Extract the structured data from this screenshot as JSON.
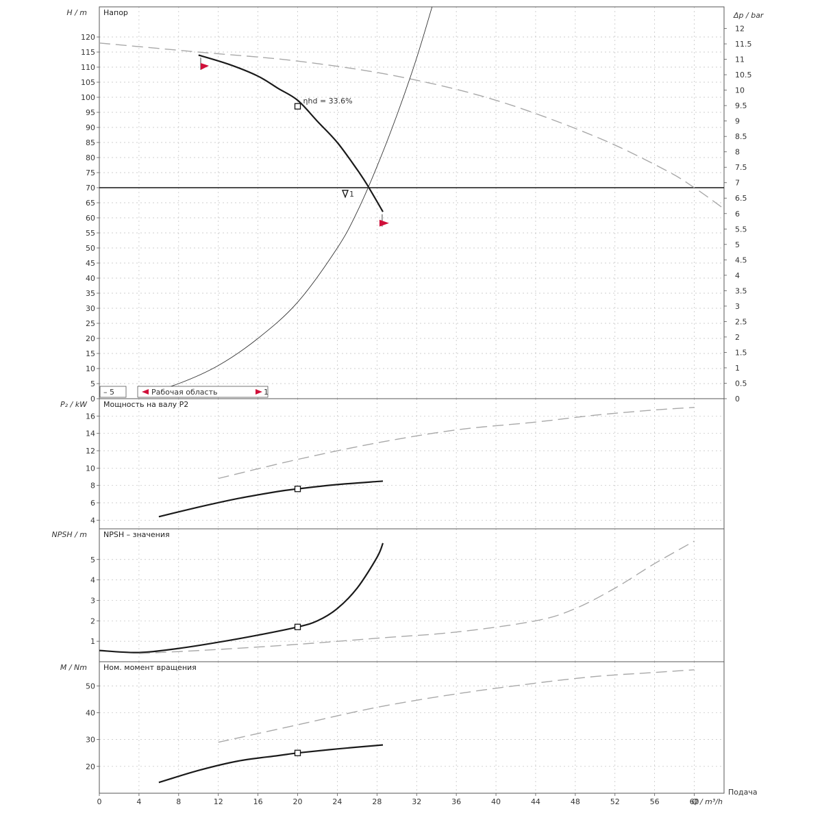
{
  "chart_data": [
    {
      "id": "head",
      "type": "line",
      "title": "Напор",
      "ylabel": "H / m",
      "y2label": "Δp / bar",
      "xlabel": "Q / m³/h",
      "xlim": [
        0,
        63
      ],
      "ylim": [
        0,
        130
      ],
      "y2lim": [
        0,
        12.7
      ],
      "x_ticks": [
        0,
        4,
        8,
        12,
        16,
        20,
        24,
        28,
        32,
        36,
        40,
        44,
        48,
        52,
        56,
        60
      ],
      "y_ticks": [
        0,
        5,
        10,
        15,
        20,
        25,
        30,
        35,
        40,
        45,
        50,
        55,
        60,
        65,
        70,
        75,
        80,
        85,
        90,
        95,
        100,
        105,
        110,
        115,
        120
      ],
      "y2_ticks": [
        "0",
        "0.5",
        "1",
        "1.5",
        "2",
        "2.5",
        "3",
        "3.5",
        "4",
        "4.5",
        "5",
        "5.5",
        "6",
        "6.5",
        "7",
        "7.5",
        "8",
        "8.5",
        "9",
        "9.5",
        "10",
        "10.5",
        "11",
        "11.5",
        "12"
      ],
      "duty_line_H": 70,
      "duty_label": "1",
      "annotation": "ηhd = 33.6%",
      "series": [
        {
          "style": "main",
          "x": [
            10,
            13,
            16,
            18,
            20,
            22,
            24,
            26,
            27,
            28.6
          ],
          "y": [
            114,
            111,
            107,
            103,
            99,
            92,
            85,
            76,
            71,
            62
          ]
        },
        {
          "style": "max",
          "x": [
            0,
            10,
            20,
            30,
            40,
            50,
            57,
            60,
            63
          ],
          "y": [
            118,
            115,
            112,
            107,
            99,
            87,
            76,
            70,
            63
          ]
        },
        {
          "style": "system",
          "x": [
            4,
            8,
            12,
            16,
            20,
            24,
            26,
            28,
            30,
            32,
            34
          ],
          "y": [
            1,
            5,
            11,
            20,
            32,
            50,
            62,
            77,
            94,
            113,
            135
          ]
        }
      ],
      "markers": [
        {
          "type": "square",
          "x": 20,
          "y": 97
        },
        {
          "type": "triangle",
          "x": 24.8,
          "y": 68
        }
      ],
      "flags": [
        {
          "x": 10.5,
          "y": 110
        },
        {
          "x": 28.8,
          "y": 58
        }
      ],
      "legend": {
        "left_item": "– 5",
        "middle_item": "Рабочая область",
        "right_item": "1"
      }
    },
    {
      "id": "power",
      "type": "line",
      "title": "Мощность на валу P2",
      "ylabel": "P₂ / kW",
      "xlim": [
        0,
        63
      ],
      "ylim": [
        3,
        18
      ],
      "y_ticks": [
        4,
        6,
        8,
        10,
        12,
        14,
        16
      ],
      "series": [
        {
          "style": "main",
          "x": [
            6,
            10,
            14,
            18,
            20,
            24,
            28.6
          ],
          "y": [
            4.4,
            5.5,
            6.5,
            7.3,
            7.6,
            8.1,
            8.5
          ]
        },
        {
          "style": "max",
          "x": [
            12,
            20,
            28,
            36,
            44,
            50,
            56,
            60
          ],
          "y": [
            8.8,
            11,
            12.9,
            14.4,
            15.3,
            16.1,
            16.7,
            17
          ]
        }
      ],
      "markers": [
        {
          "type": "square",
          "x": 20,
          "y": 7.6
        }
      ]
    },
    {
      "id": "npsh",
      "type": "line",
      "title": "NPSH – значения",
      "ylabel": "NPSH / m",
      "xlim": [
        0,
        63
      ],
      "ylim": [
        0,
        6.5
      ],
      "y_ticks": [
        1,
        2,
        3,
        4,
        5
      ],
      "series": [
        {
          "style": "main",
          "x": [
            0,
            4,
            8,
            12,
            16,
            20,
            22,
            24,
            26,
            28,
            28.6
          ],
          "y": [
            0.55,
            0.45,
            0.65,
            0.95,
            1.3,
            1.7,
            2.0,
            2.6,
            3.6,
            5.1,
            5.8
          ]
        },
        {
          "style": "max",
          "x": [
            4,
            12,
            20,
            28,
            36,
            44,
            48,
            52,
            56,
            60
          ],
          "y": [
            0.4,
            0.6,
            0.85,
            1.15,
            1.45,
            2.0,
            2.6,
            3.6,
            4.8,
            5.9
          ]
        }
      ],
      "markers": [
        {
          "type": "square",
          "x": 20,
          "y": 1.7
        }
      ]
    },
    {
      "id": "torque",
      "type": "line",
      "title": "Ном. момент вращения",
      "ylabel": "M / Nm",
      "xlabel": "Q / m³/h",
      "xlim": [
        0,
        63
      ],
      "ylim": [
        10,
        59
      ],
      "x_ticks": [
        0,
        4,
        8,
        12,
        16,
        20,
        24,
        28,
        32,
        36,
        40,
        44,
        48,
        52,
        56,
        60
      ],
      "y_ticks": [
        20,
        30,
        40,
        50
      ],
      "series": [
        {
          "style": "main",
          "x": [
            6,
            10,
            14,
            18,
            20,
            24,
            28.6
          ],
          "y": [
            14,
            18.5,
            22,
            24,
            25,
            26.5,
            28
          ]
        },
        {
          "style": "max",
          "x": [
            12,
            20,
            28,
            36,
            44,
            50,
            56,
            60
          ],
          "y": [
            29,
            35.5,
            42,
            47,
            51,
            53.5,
            55,
            56
          ]
        }
      ],
      "markers": [
        {
          "type": "square",
          "x": 20,
          "y": 25
        }
      ]
    }
  ],
  "footer_label": "Подача"
}
